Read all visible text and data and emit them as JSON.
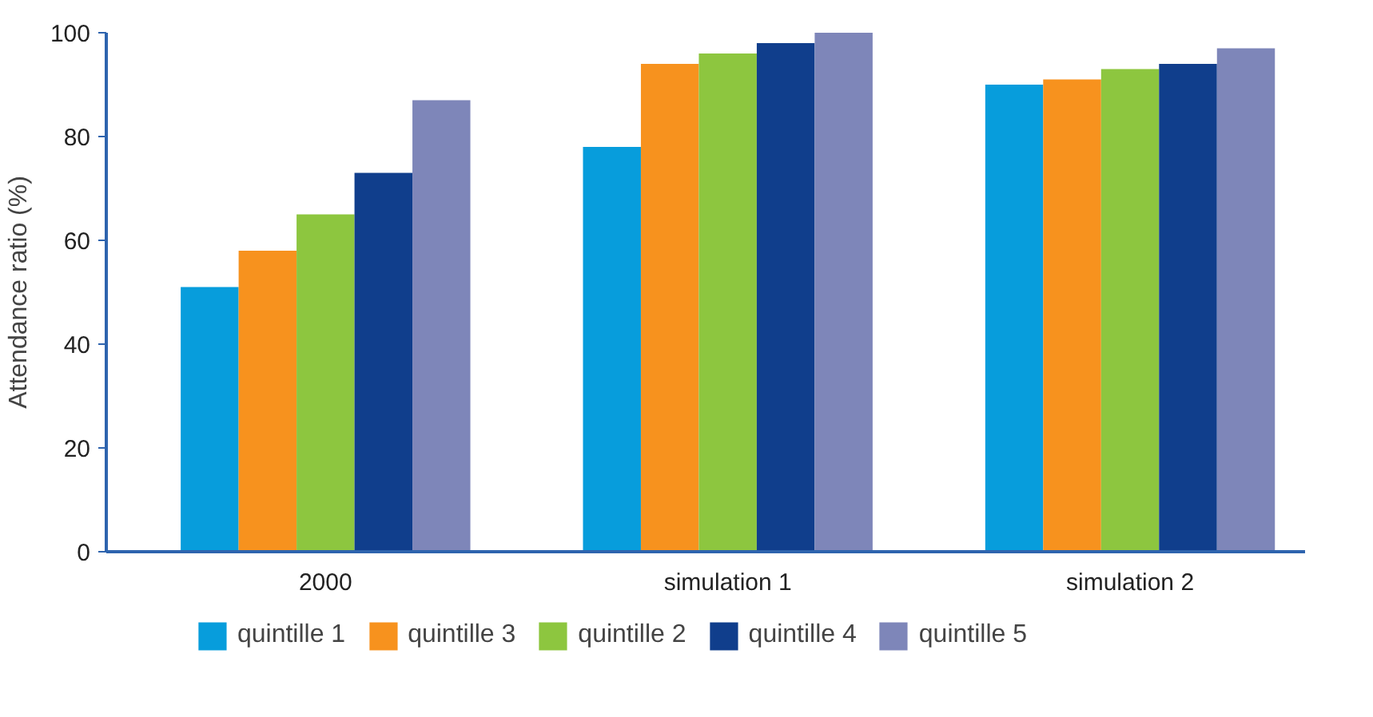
{
  "chart_data": {
    "type": "bar",
    "ylabel": "Attendance ratio (%)",
    "categories": [
      "2000",
      "simulation 1",
      "simulation 2"
    ],
    "series": [
      {
        "name": "quintille 1",
        "color": "#079ddc",
        "values": [
          51,
          78,
          90
        ]
      },
      {
        "name": "quintille 3",
        "color": "#f7921e",
        "values": [
          58,
          94,
          91
        ]
      },
      {
        "name": "quintille 2",
        "color": "#8dc63f",
        "values": [
          65,
          96,
          93
        ]
      },
      {
        "name": "quintille 4",
        "color": "#103e8c",
        "values": [
          73,
          98,
          94
        ]
      },
      {
        "name": "quintille 5",
        "color": "#7e86b9",
        "values": [
          87,
          100,
          97
        ]
      }
    ],
    "ylim": [
      0,
      100
    ],
    "yticks": [
      0,
      20,
      40,
      60,
      80,
      100
    ],
    "grid": false,
    "legend": "bottom"
  }
}
